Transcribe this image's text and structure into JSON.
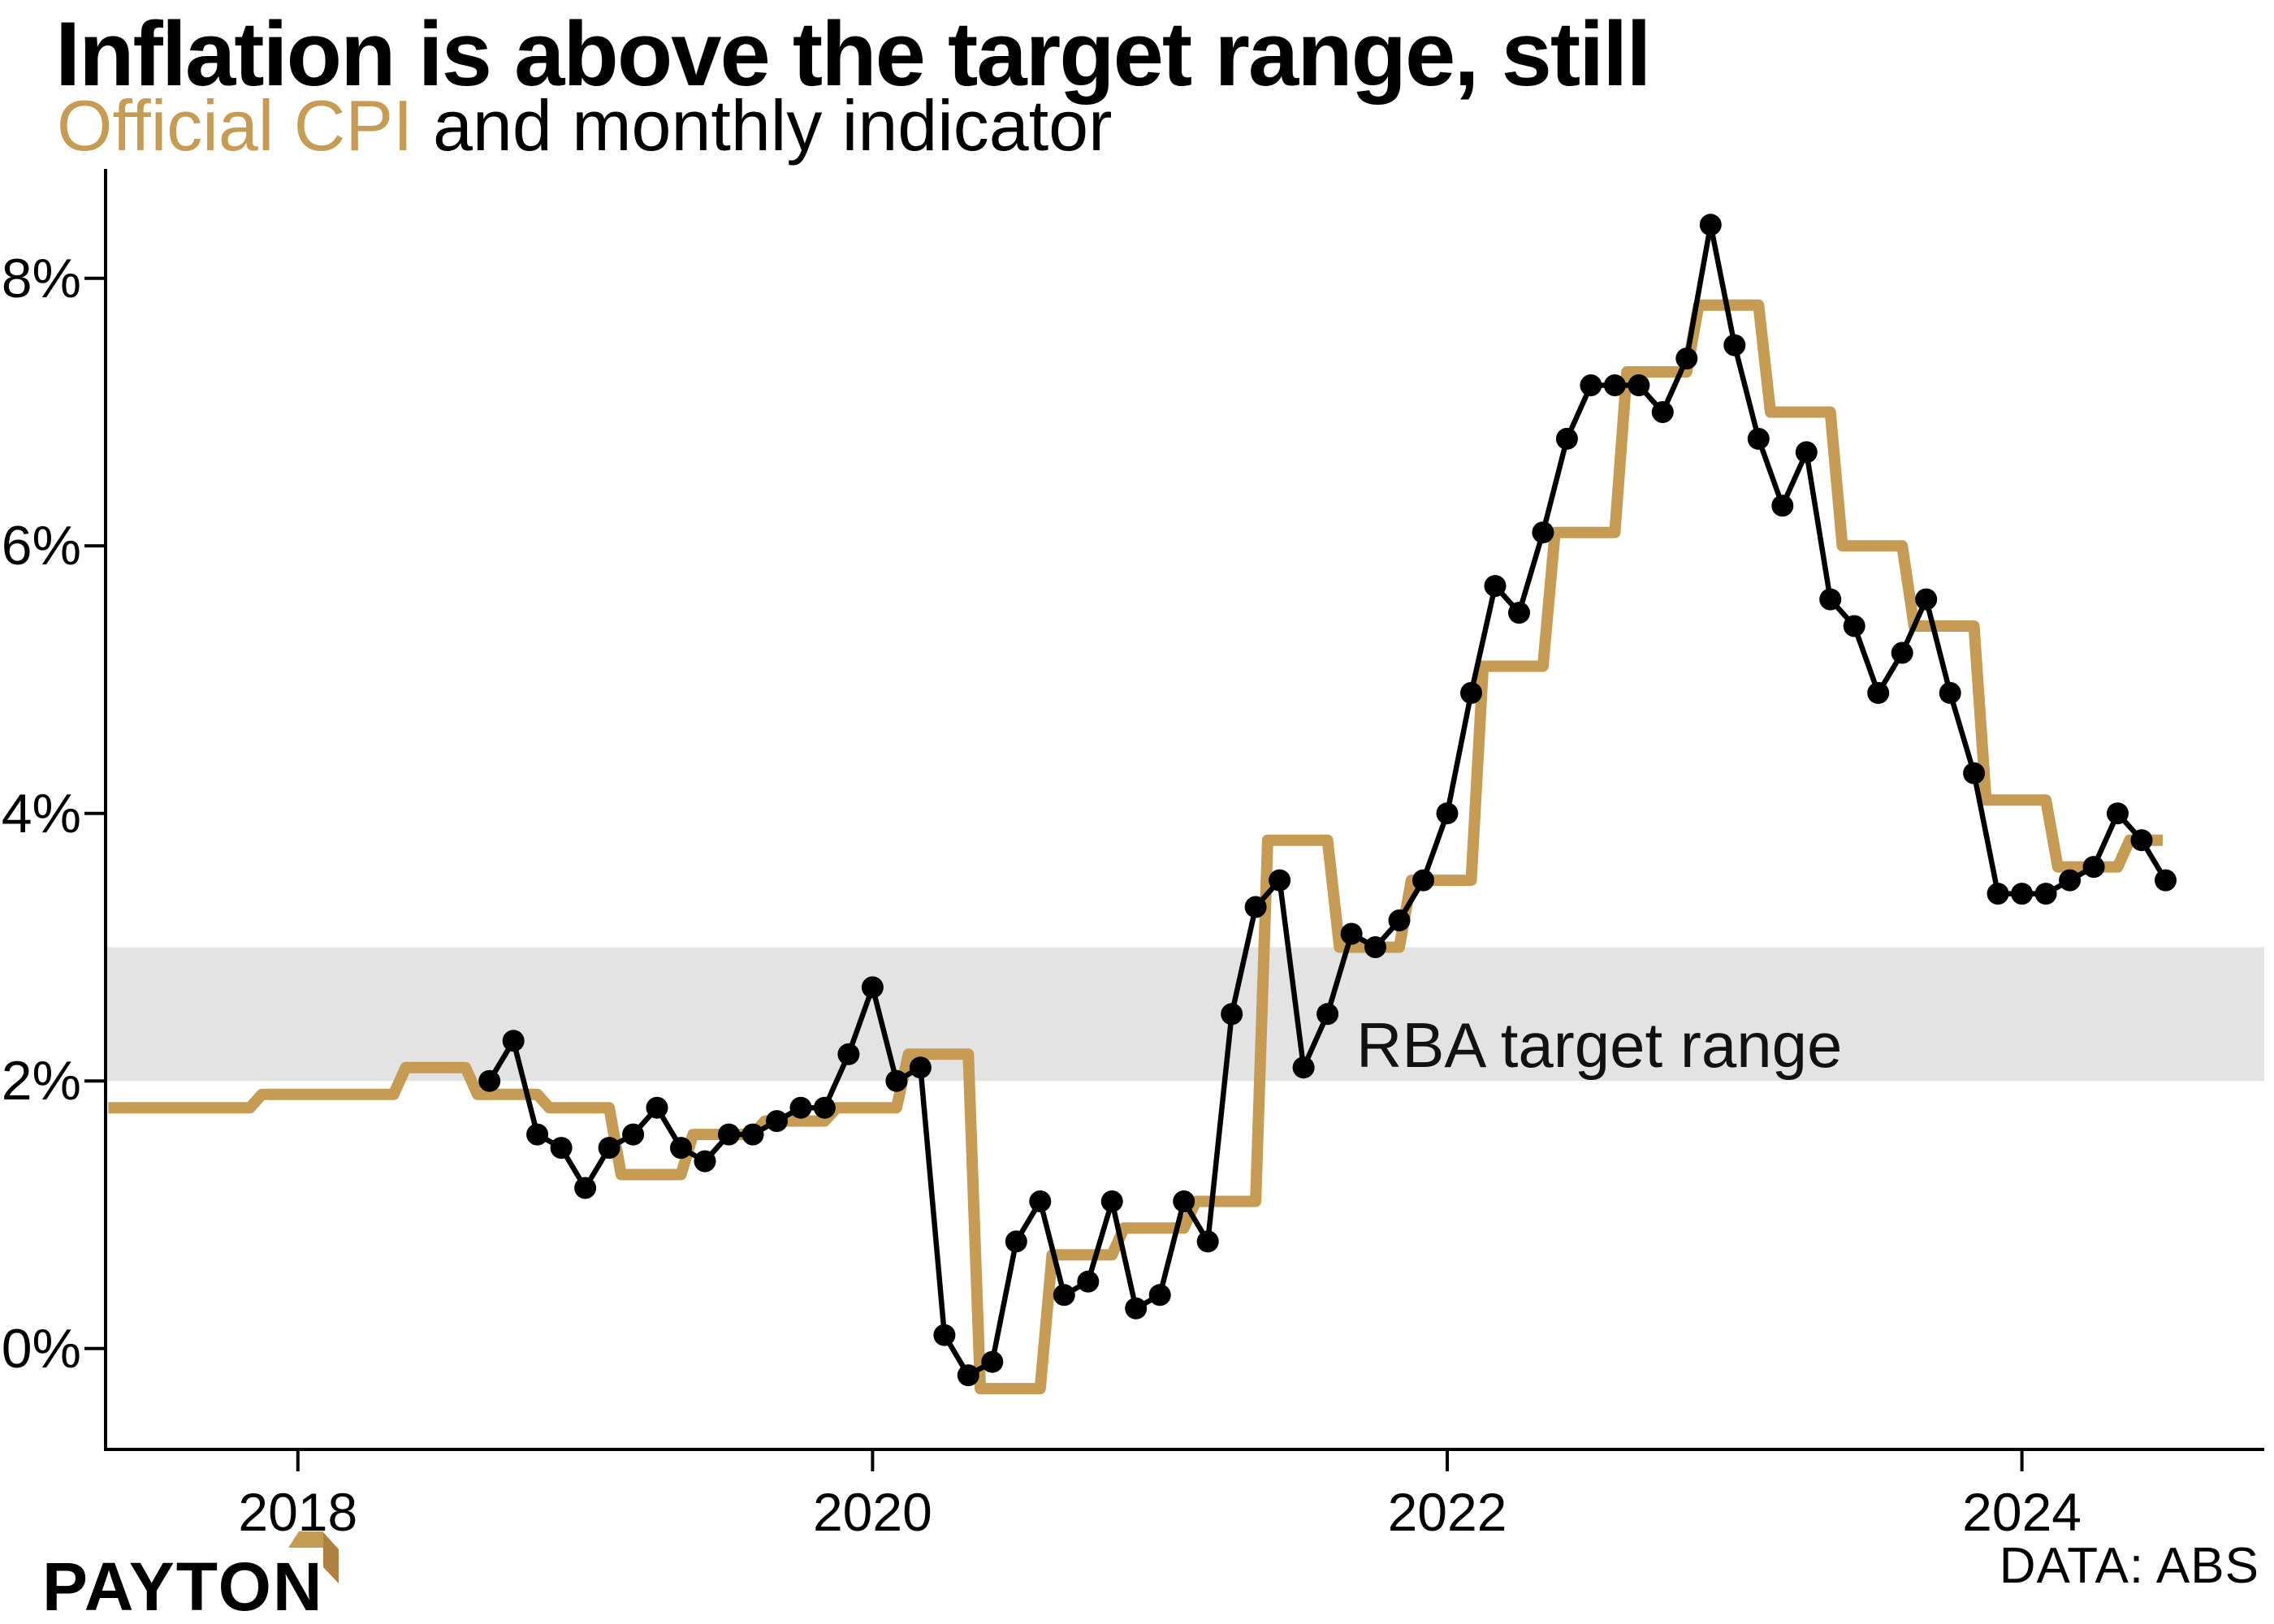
{
  "header": {
    "title": "Inflation is above the target range, still",
    "subtitle_highlight": "Official CPI",
    "subtitle_rest": " and monthly indicator"
  },
  "footer": {
    "brand": "PAYTON",
    "source": "DATA: ABS"
  },
  "colors": {
    "gold": "#C69B53",
    "gold_dark": "#AF8140",
    "band": "#E3E3E3",
    "black": "#000000"
  },
  "chart_data": {
    "type": "line",
    "title": "Inflation is above the target range, still",
    "subtitle": "Official CPI and monthly indicator",
    "ylabel": "",
    "xlabel": "",
    "ylim": [
      -0.75,
      8.82
    ],
    "xlim_years": [
      2017.33,
      2024.6
    ],
    "grid": false,
    "legend_position": "none (series named in subtitle)",
    "y_ticks": [
      {
        "label": "0%",
        "value": 0
      },
      {
        "label": "2%",
        "value": 2
      },
      {
        "label": "4%",
        "value": 4
      },
      {
        "label": "6%",
        "value": 6
      },
      {
        "label": "8%",
        "value": 8
      }
    ],
    "x_ticks": [
      {
        "label": "2018",
        "value": 2018
      },
      {
        "label": "2020",
        "value": 2020
      },
      {
        "label": "2022",
        "value": 2022
      },
      {
        "label": "2024",
        "value": 2024
      }
    ],
    "band": {
      "label": "RBA target range",
      "from": 2,
      "to": 3
    },
    "series": [
      {
        "name": "Official CPI",
        "style": "step",
        "color": "#C69B53",
        "unit": "% annual change, quarterly",
        "data": [
          [
            "2017-Q3",
            1.8
          ],
          [
            "2017-Q4",
            1.9
          ],
          [
            "2018-Q1",
            1.9
          ],
          [
            "2018-Q2",
            2.1
          ],
          [
            "2018-Q3",
            1.9
          ],
          [
            "2018-Q4",
            1.8
          ],
          [
            "2019-Q1",
            1.3
          ],
          [
            "2019-Q2",
            1.6
          ],
          [
            "2019-Q3",
            1.7
          ],
          [
            "2019-Q4",
            1.8
          ],
          [
            "2020-Q1",
            2.2
          ],
          [
            "2020-Q2",
            -0.3
          ],
          [
            "2020-Q3",
            0.7
          ],
          [
            "2020-Q4",
            0.9
          ],
          [
            "2021-Q1",
            1.1
          ],
          [
            "2021-Q2",
            3.8
          ],
          [
            "2021-Q3",
            3.0
          ],
          [
            "2021-Q4",
            3.5
          ],
          [
            "2022-Q1",
            5.1
          ],
          [
            "2022-Q2",
            6.1
          ],
          [
            "2022-Q3",
            7.3
          ],
          [
            "2022-Q4",
            7.8
          ],
          [
            "2023-Q1",
            7.0
          ],
          [
            "2023-Q2",
            6.0
          ],
          [
            "2023-Q3",
            5.4
          ],
          [
            "2023-Q4",
            4.1
          ],
          [
            "2024-Q1",
            3.6
          ],
          [
            "2024-Q2",
            3.8
          ]
        ]
      },
      {
        "name": "monthly indicator",
        "style": "line-markers",
        "color": "#000000",
        "unit": "% annual change, monthly",
        "data": [
          [
            "2018-09",
            2.0
          ],
          [
            "2018-10",
            2.3
          ],
          [
            "2018-11",
            1.6
          ],
          [
            "2018-12",
            1.5
          ],
          [
            "2019-01",
            1.2
          ],
          [
            "2019-02",
            1.5
          ],
          [
            "2019-03",
            1.6
          ],
          [
            "2019-04",
            1.8
          ],
          [
            "2019-05",
            1.5
          ],
          [
            "2019-06",
            1.4
          ],
          [
            "2019-07",
            1.6
          ],
          [
            "2019-08",
            1.6
          ],
          [
            "2019-09",
            1.7
          ],
          [
            "2019-10",
            1.8
          ],
          [
            "2019-11",
            1.8
          ],
          [
            "2019-12",
            2.2
          ],
          [
            "2020-01",
            2.7
          ],
          [
            "2020-02",
            2.0
          ],
          [
            "2020-03",
            2.1
          ],
          [
            "2020-04",
            0.1
          ],
          [
            "2020-05",
            -0.2
          ],
          [
            "2020-06",
            -0.1
          ],
          [
            "2020-07",
            0.8
          ],
          [
            "2020-08",
            1.1
          ],
          [
            "2020-09",
            0.4
          ],
          [
            "2020-10",
            0.5
          ],
          [
            "2020-11",
            1.1
          ],
          [
            "2020-12",
            0.3
          ],
          [
            "2021-01",
            0.4
          ],
          [
            "2021-02",
            1.1
          ],
          [
            "2021-03",
            0.8
          ],
          [
            "2021-04",
            2.5
          ],
          [
            "2021-05",
            3.3
          ],
          [
            "2021-06",
            3.5
          ],
          [
            "2021-07",
            2.1
          ],
          [
            "2021-08",
            2.5
          ],
          [
            "2021-09",
            3.1
          ],
          [
            "2021-10",
            3.0
          ],
          [
            "2021-11",
            3.2
          ],
          [
            "2021-12",
            3.5
          ],
          [
            "2022-01",
            4.0
          ],
          [
            "2022-02",
            4.9
          ],
          [
            "2022-03",
            5.7
          ],
          [
            "2022-04",
            5.5
          ],
          [
            "2022-05",
            6.1
          ],
          [
            "2022-06",
            6.8
          ],
          [
            "2022-07",
            7.2
          ],
          [
            "2022-08",
            7.2
          ],
          [
            "2022-09",
            7.2
          ],
          [
            "2022-10",
            7.0
          ],
          [
            "2022-11",
            7.4
          ],
          [
            "2022-12",
            8.4
          ],
          [
            "2023-01",
            7.5
          ],
          [
            "2023-02",
            6.8
          ],
          [
            "2023-03",
            6.3
          ],
          [
            "2023-04",
            6.7
          ],
          [
            "2023-05",
            5.6
          ],
          [
            "2023-06",
            5.4
          ],
          [
            "2023-07",
            4.9
          ],
          [
            "2023-08",
            5.2
          ],
          [
            "2023-09",
            5.6
          ],
          [
            "2023-10",
            4.9
          ],
          [
            "2023-11",
            4.3
          ],
          [
            "2023-12",
            3.4
          ],
          [
            "2024-01",
            3.4
          ],
          [
            "2024-02",
            3.4
          ],
          [
            "2024-03",
            3.5
          ],
          [
            "2024-04",
            3.6
          ],
          [
            "2024-05",
            4.0
          ],
          [
            "2024-06",
            3.8
          ],
          [
            "2024-07",
            3.5
          ]
        ]
      }
    ]
  }
}
